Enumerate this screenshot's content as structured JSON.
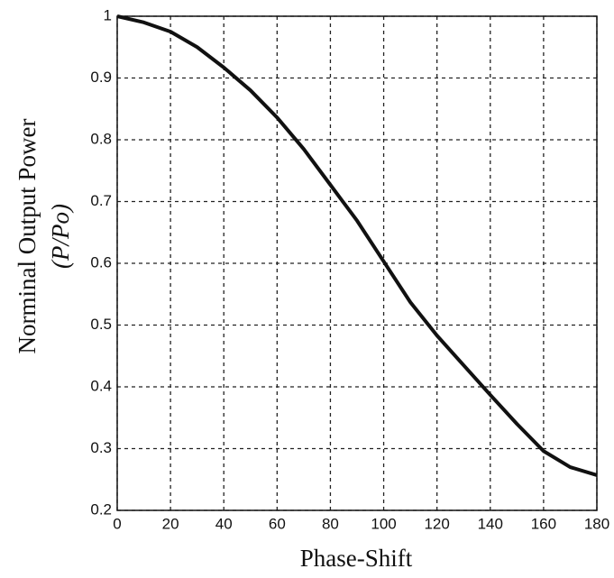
{
  "chart_data": {
    "type": "line",
    "xlabel": "Phase-Shift",
    "ylabel": "Norminal Output Power",
    "ylabel2": "(P/Po)",
    "x": [
      0,
      10,
      20,
      30,
      40,
      50,
      60,
      70,
      80,
      90,
      100,
      110,
      120,
      130,
      140,
      150,
      160,
      170,
      180
    ],
    "series": [
      {
        "color": "#111111",
        "values": [
          1.0,
          0.99,
          0.975,
          0.95,
          0.917,
          0.88,
          0.836,
          0.785,
          0.727,
          0.669,
          0.603,
          0.537,
          0.483,
          0.435,
          0.387,
          0.34,
          0.296,
          0.27,
          0.257
        ]
      }
    ],
    "xlim": [
      0,
      180
    ],
    "xticks": [
      0,
      20,
      40,
      60,
      80,
      100,
      120,
      140,
      160,
      180
    ],
    "ylim": [
      0.2,
      1
    ],
    "yticks": [
      0.2,
      0.3,
      0.4,
      0.5,
      0.6,
      0.7,
      0.8,
      0.9,
      1
    ],
    "grid": true
  }
}
